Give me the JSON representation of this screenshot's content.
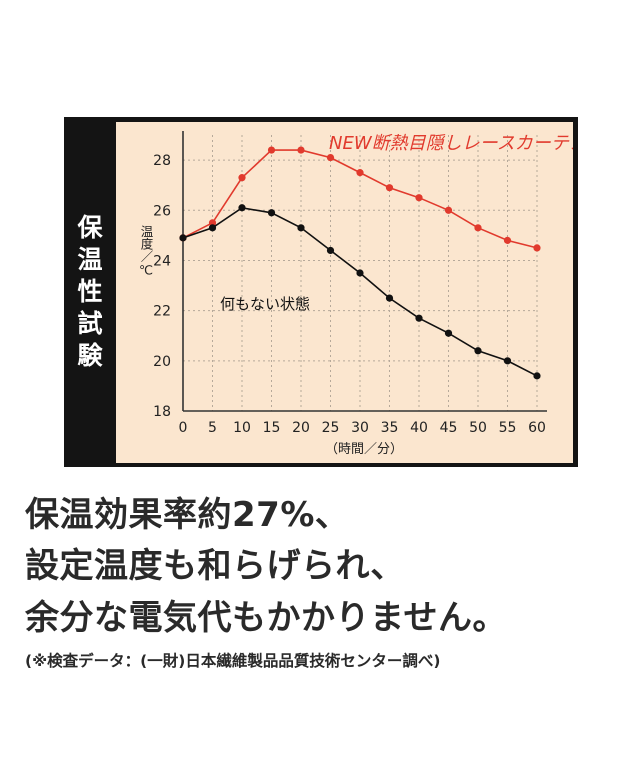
{
  "side_title": [
    "保",
    "温",
    "性",
    "試",
    "験"
  ],
  "chart_data": {
    "type": "line",
    "x": [
      0,
      5,
      10,
      15,
      20,
      25,
      30,
      35,
      40,
      45,
      50,
      55,
      60
    ],
    "xlabel": "（時間／分）",
    "ylabel": "温度／℃",
    "xlim": [
      0,
      60
    ],
    "ylim": [
      18,
      29
    ],
    "xticks": [
      0,
      5,
      10,
      15,
      20,
      25,
      30,
      35,
      40,
      45,
      50,
      55,
      60
    ],
    "yticks": [
      18,
      20,
      22,
      24,
      26,
      28
    ],
    "grid": true,
    "series": [
      {
        "name": "NEW断熱目隠しレースカーテン",
        "color": "#e13a2d",
        "values": [
          24.9,
          25.5,
          27.3,
          28.4,
          28.4,
          28.1,
          27.5,
          26.9,
          26.5,
          26.0,
          25.3,
          24.8,
          24.5
        ]
      },
      {
        "name": "何もない状態",
        "color": "#111111",
        "values": [
          24.9,
          25.3,
          26.1,
          25.9,
          25.3,
          24.4,
          23.5,
          22.5,
          21.7,
          21.1,
          20.4,
          20.0,
          19.4
        ]
      }
    ]
  },
  "copy_lines": [
    "保温効果率約27%、",
    "設定温度も和らげられ、",
    "余分な電気代もかかりません。"
  ],
  "note": "(※検査データ：(一財)日本繊維製品品質技術センター調べ)"
}
